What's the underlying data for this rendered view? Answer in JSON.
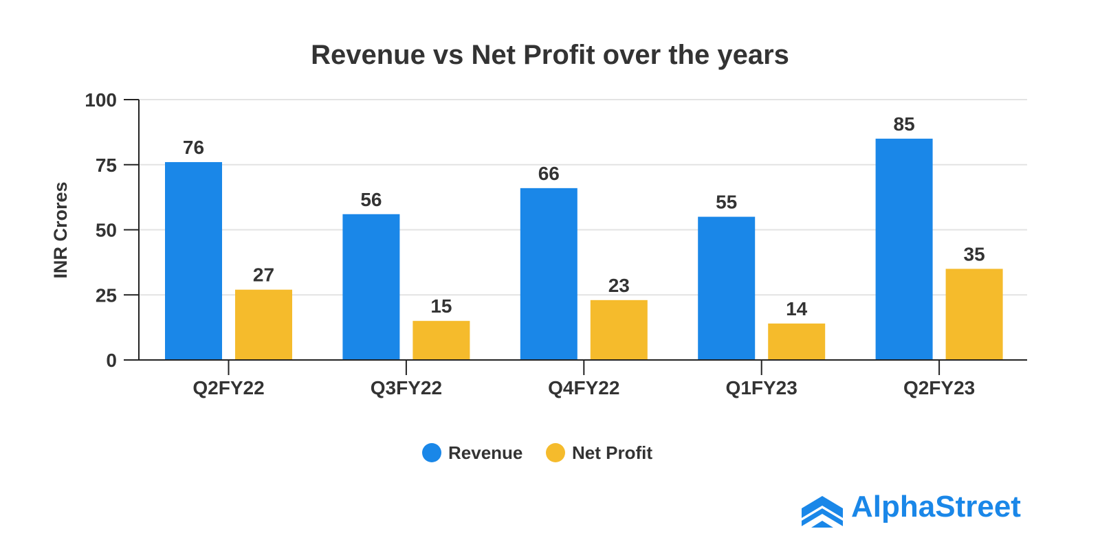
{
  "chart_data": {
    "type": "bar",
    "title": "Revenue vs Net Profit over the years",
    "xlabel": "",
    "ylabel": "INR Crores",
    "ylim": [
      0,
      100
    ],
    "yticks": [
      0,
      25,
      50,
      75,
      100
    ],
    "grid": true,
    "legend_position": "bottom-center",
    "categories": [
      "Q2FY22",
      "Q3FY22",
      "Q4FY22",
      "Q1FY23",
      "Q2FY23"
    ],
    "series": [
      {
        "name": "Revenue",
        "color": "#1a87e8",
        "values": [
          76,
          56,
          66,
          55,
          85
        ]
      },
      {
        "name": "Net Profit",
        "color": "#f5bb2c",
        "values": [
          27,
          15,
          23,
          14,
          35
        ]
      }
    ]
  },
  "branding": {
    "logo_text": "AlphaStreet",
    "logo_color": "#1a87e8"
  }
}
